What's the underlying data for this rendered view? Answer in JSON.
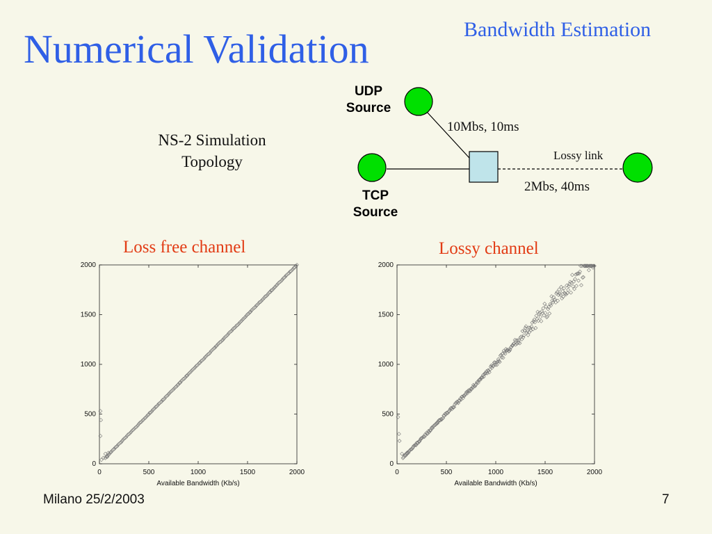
{
  "slide": {
    "title": "Numerical Validation",
    "section": "Bandwidth Estimation",
    "footer_left": "Milano 25/2/2003",
    "page_number": "7"
  },
  "topology": {
    "caption_line1": "NS-2 Simulation",
    "caption_line2": "Topology",
    "udp_label_line1": "UDP",
    "udp_label_line2": "Source",
    "tcp_label_line1": "TCP",
    "tcp_label_line2": "Source",
    "link_main": "10Mbs, 10ms",
    "link_lossy_name": "Lossy link",
    "link_lossy": "2Mbs, 40ms",
    "colors": {
      "node": "#00e000",
      "router": "#bfe4ea"
    }
  },
  "chart_data": [
    {
      "type": "scatter",
      "title": "Loss free channel",
      "xlabel": "Available Bandwidth (Kb/s)",
      "ylabel": "",
      "xlim": [
        0,
        2000
      ],
      "ylim": [
        0,
        2000
      ],
      "xticks": [
        0,
        500,
        1000,
        1500,
        2000
      ],
      "yticks": [
        0,
        500,
        1000,
        1500,
        2000
      ],
      "grid": false,
      "series": [
        {
          "relation": "y = x",
          "x_range": [
            60,
            2000
          ],
          "step": 10
        },
        {
          "outliers": [
            [
              10,
              530
            ],
            [
              15,
              440
            ],
            [
              10,
              280
            ],
            [
              40,
              60
            ],
            [
              60,
              100
            ],
            [
              80,
              70
            ],
            [
              90,
              110
            ],
            [
              20,
              40
            ]
          ]
        }
      ]
    },
    {
      "type": "scatter",
      "title": "Lossy channel",
      "xlabel": "Available Bandwidth (Kb/s)",
      "ylabel": "",
      "xlim": [
        0,
        2000
      ],
      "ylim": [
        0,
        2000
      ],
      "xticks": [
        0,
        500,
        1000,
        1500,
        2000
      ],
      "yticks": [
        0,
        500,
        1000,
        1500,
        2000
      ],
      "grid": false,
      "series": [
        {
          "relation": "y ≈ x with spread increasing above x ≈ 900 (mostly above diagonal)",
          "x_range": [
            60,
            2000
          ]
        },
        {
          "outliers": [
            [
              10,
              470
            ],
            [
              20,
              300
            ],
            [
              25,
              230
            ],
            [
              50,
              100
            ],
            [
              80,
              90
            ],
            [
              100,
              110
            ]
          ]
        }
      ]
    }
  ]
}
